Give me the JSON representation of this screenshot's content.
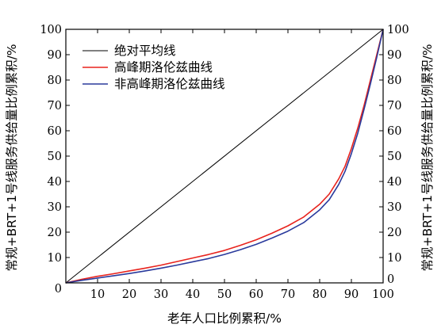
{
  "chart_data": {
    "type": "line",
    "xlabel": "老年人口比例累积/%",
    "ylabel": "常规+BRT+1号线服务供给量比例累积/%",
    "y2label": "常规+BRT+1号线服务供给量比例累积/%",
    "xlim": [
      0,
      100
    ],
    "ylim": [
      0,
      100
    ],
    "x_ticks": [
      "0",
      "10",
      "20",
      "30",
      "40",
      "50",
      "60",
      "70",
      "80",
      "90",
      "100"
    ],
    "y_ticks": [
      "0",
      "10",
      "20",
      "30",
      "40",
      "50",
      "60",
      "70",
      "80",
      "90",
      "100"
    ],
    "legend_position": "top-left",
    "grid": false,
    "series": [
      {
        "name": "绝对平均线",
        "color": "#000000",
        "x": [
          0,
          100
        ],
        "y": [
          0,
          100
        ]
      },
      {
        "name": "高峰期洛伦兹曲线",
        "color": "#e8231d",
        "x": [
          0,
          5,
          10,
          15,
          20,
          25,
          30,
          35,
          40,
          45,
          50,
          55,
          60,
          65,
          70,
          75,
          80,
          83,
          86,
          88,
          90,
          92,
          94,
          96,
          98,
          100
        ],
        "y": [
          0,
          1.4,
          2.6,
          3.6,
          4.7,
          5.8,
          7.0,
          8.4,
          9.8,
          11.2,
          12.8,
          14.8,
          17.0,
          19.6,
          22.5,
          26.0,
          31.0,
          35.0,
          41.0,
          46.0,
          53.0,
          61.0,
          70.0,
          80.0,
          90.0,
          100
        ]
      },
      {
        "name": "非高峰期洛伦兹曲线",
        "color": "#2a3a9c",
        "x": [
          0,
          5,
          10,
          15,
          20,
          25,
          30,
          35,
          40,
          45,
          50,
          55,
          60,
          65,
          70,
          75,
          80,
          83,
          86,
          88,
          90,
          92,
          94,
          96,
          98,
          100
        ],
        "y": [
          0,
          1.0,
          1.9,
          2.8,
          3.7,
          4.7,
          5.8,
          7.0,
          8.3,
          9.6,
          11.2,
          13.1,
          15.2,
          17.7,
          20.4,
          23.8,
          28.8,
          32.8,
          38.8,
          44.0,
          51.0,
          59.0,
          68.5,
          78.5,
          89.0,
          100
        ]
      }
    ]
  }
}
